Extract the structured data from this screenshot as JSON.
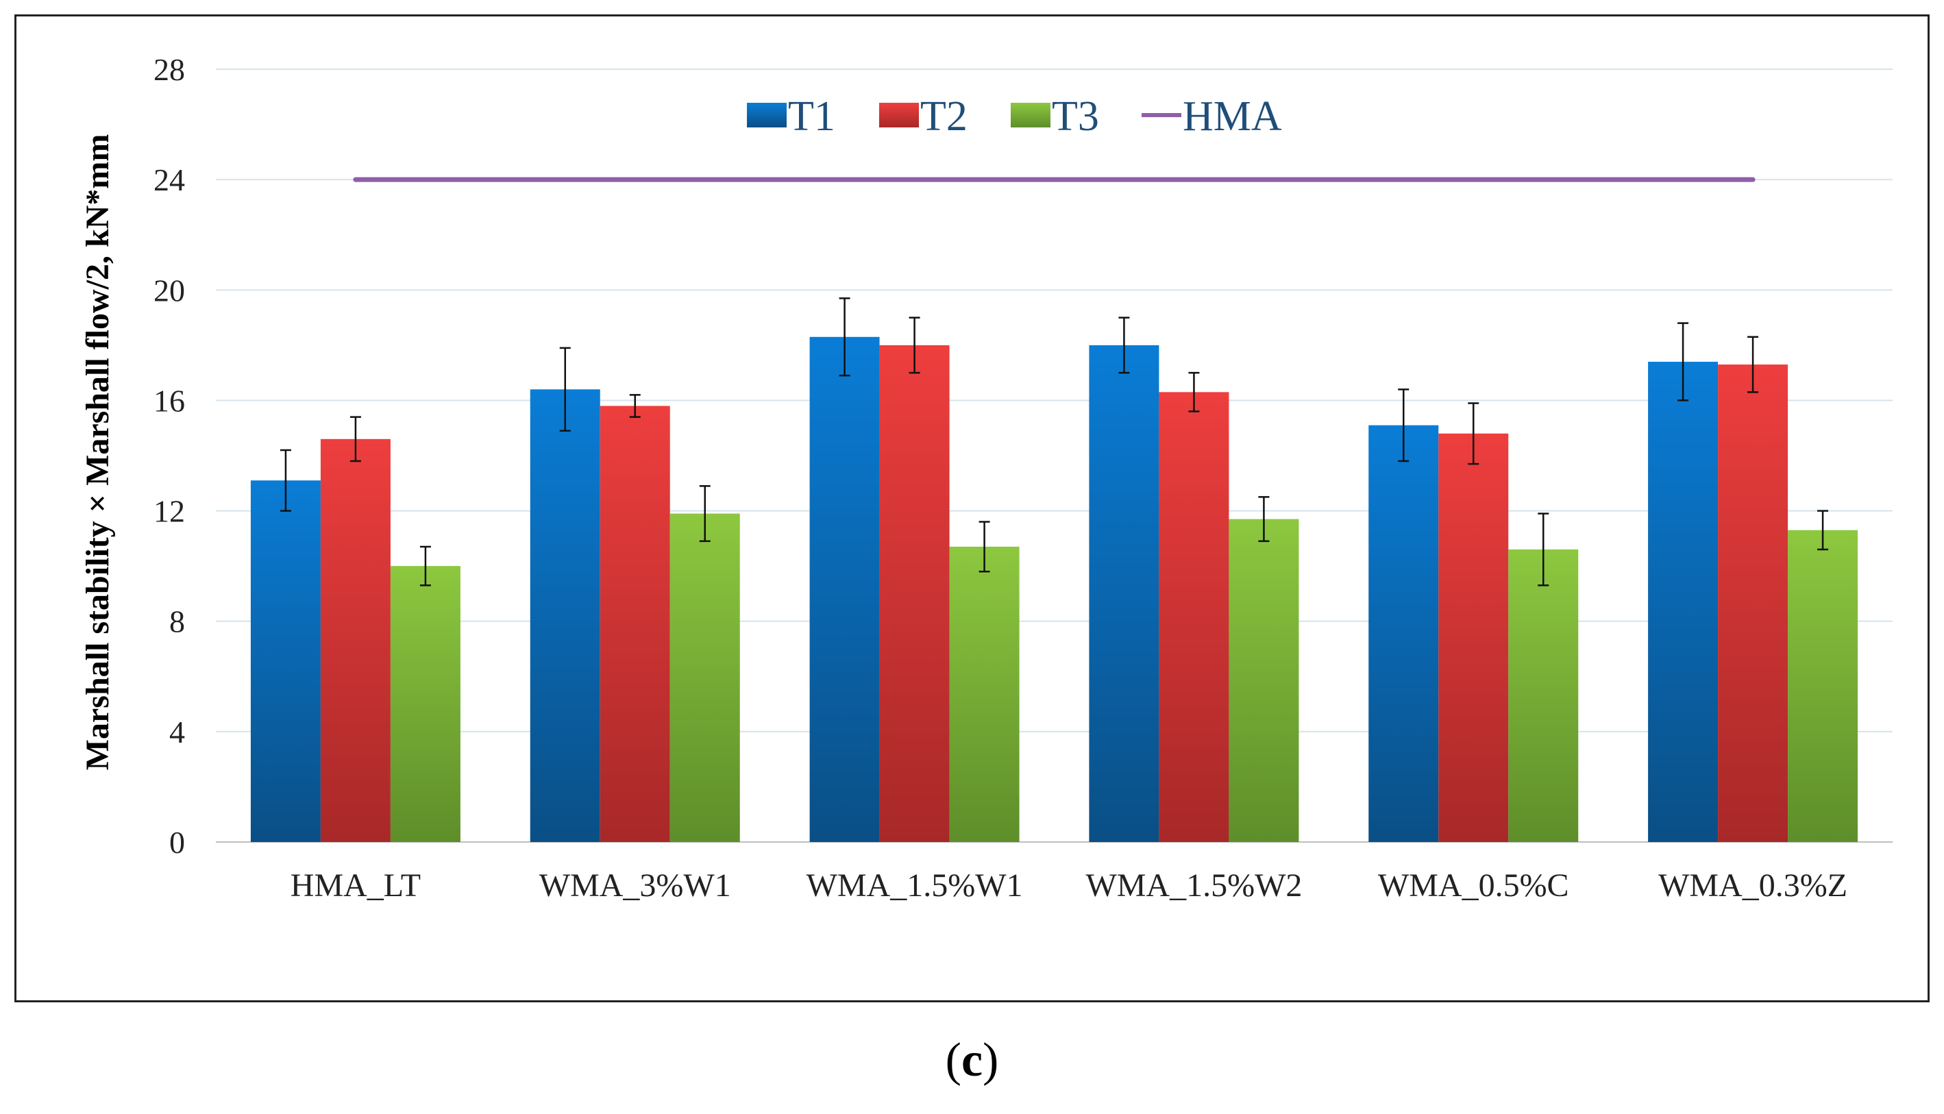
{
  "caption": {
    "open": "(",
    "letter": "c",
    "close": ")"
  },
  "chart_data": {
    "type": "bar",
    "title": "",
    "xlabel": "",
    "ylabel": "Marshall stability × Marshall flow/2, kN*mm",
    "ylim": [
      0,
      28
    ],
    "yticks": [
      0,
      4,
      8,
      12,
      16,
      20,
      24,
      28
    ],
    "grid": true,
    "legend_position": "top-center",
    "categories": [
      "HMA_LT",
      "WMA_3%W1",
      "WMA_1.5%W1",
      "WMA_1.5%W2",
      "WMA_0.5%C",
      "WMA_0.3%Z"
    ],
    "series": [
      {
        "name": "T1",
        "color": "#0070C0",
        "values": [
          13.1,
          16.4,
          18.3,
          18.0,
          15.1,
          17.4
        ],
        "errors": [
          1.1,
          1.5,
          1.4,
          1.0,
          1.3,
          1.4
        ]
      },
      {
        "name": "T2",
        "color": "#E83A3A",
        "values": [
          14.6,
          15.8,
          18.0,
          16.3,
          14.8,
          17.3
        ],
        "errors": [
          0.8,
          0.4,
          1.0,
          0.7,
          1.1,
          1.0
        ]
      },
      {
        "name": "T3",
        "color": "#7DBE3A",
        "values": [
          10.0,
          11.9,
          10.7,
          11.7,
          10.6,
          11.3
        ],
        "errors": [
          0.7,
          1.0,
          0.9,
          0.8,
          1.3,
          0.7
        ]
      }
    ],
    "reference_line": {
      "name": "HMA",
      "value": 24,
      "color": "#8E5FA8",
      "from_category": "HMA_LT",
      "to_category": "WMA_0.3%Z"
    }
  }
}
